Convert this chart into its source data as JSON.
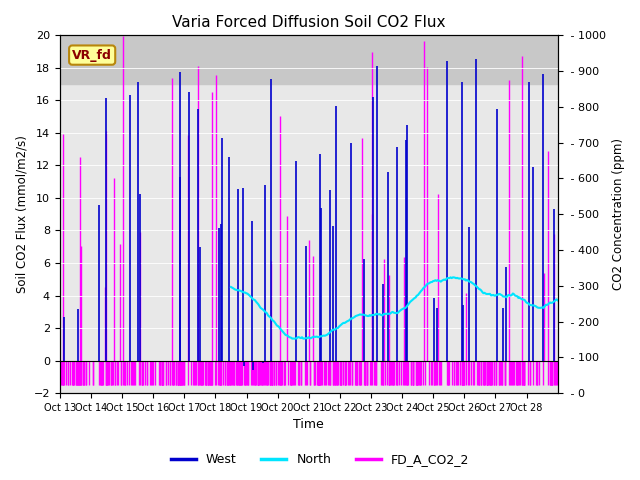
{
  "title": "Varia Forced Diffusion Soil CO2 Flux",
  "xlabel": "Time",
  "ylabel_left": "Soil CO2 Flux (mmol/m2/s)",
  "ylabel_right": "CO2 Concentration (ppm)",
  "ylim_left": [
    -2,
    20
  ],
  "ylim_right": [
    0,
    1000
  ],
  "xlim_left": [
    0,
    16
  ],
  "xtick_labels": [
    "Oct 13",
    "Oct 14",
    "Oct 15",
    "Oct 16",
    "Oct 17",
    "Oct 18",
    "Oct 19",
    "Oct 20",
    "Oct 21",
    "Oct 22",
    "Oct 23",
    "Oct 24",
    "Oct 25",
    "Oct 26",
    "Oct 27",
    "Oct 28"
  ],
  "bg_band_ylim": [
    17.0,
    20.0
  ],
  "bg_band_color": "#c8c8c8",
  "plot_bg_color": "#e8e8e8",
  "vr_fd_box_color": "#ffff99",
  "vr_fd_text_color": "#8b0000",
  "west_color": "#0000cd",
  "north_color": "#00e5ff",
  "magenta_color": "#ff00ff",
  "legend_labels": [
    "West",
    "North",
    "FD_A_CO2_2"
  ],
  "west_seed": 42,
  "mag_seed": 123,
  "north_seed": 7
}
